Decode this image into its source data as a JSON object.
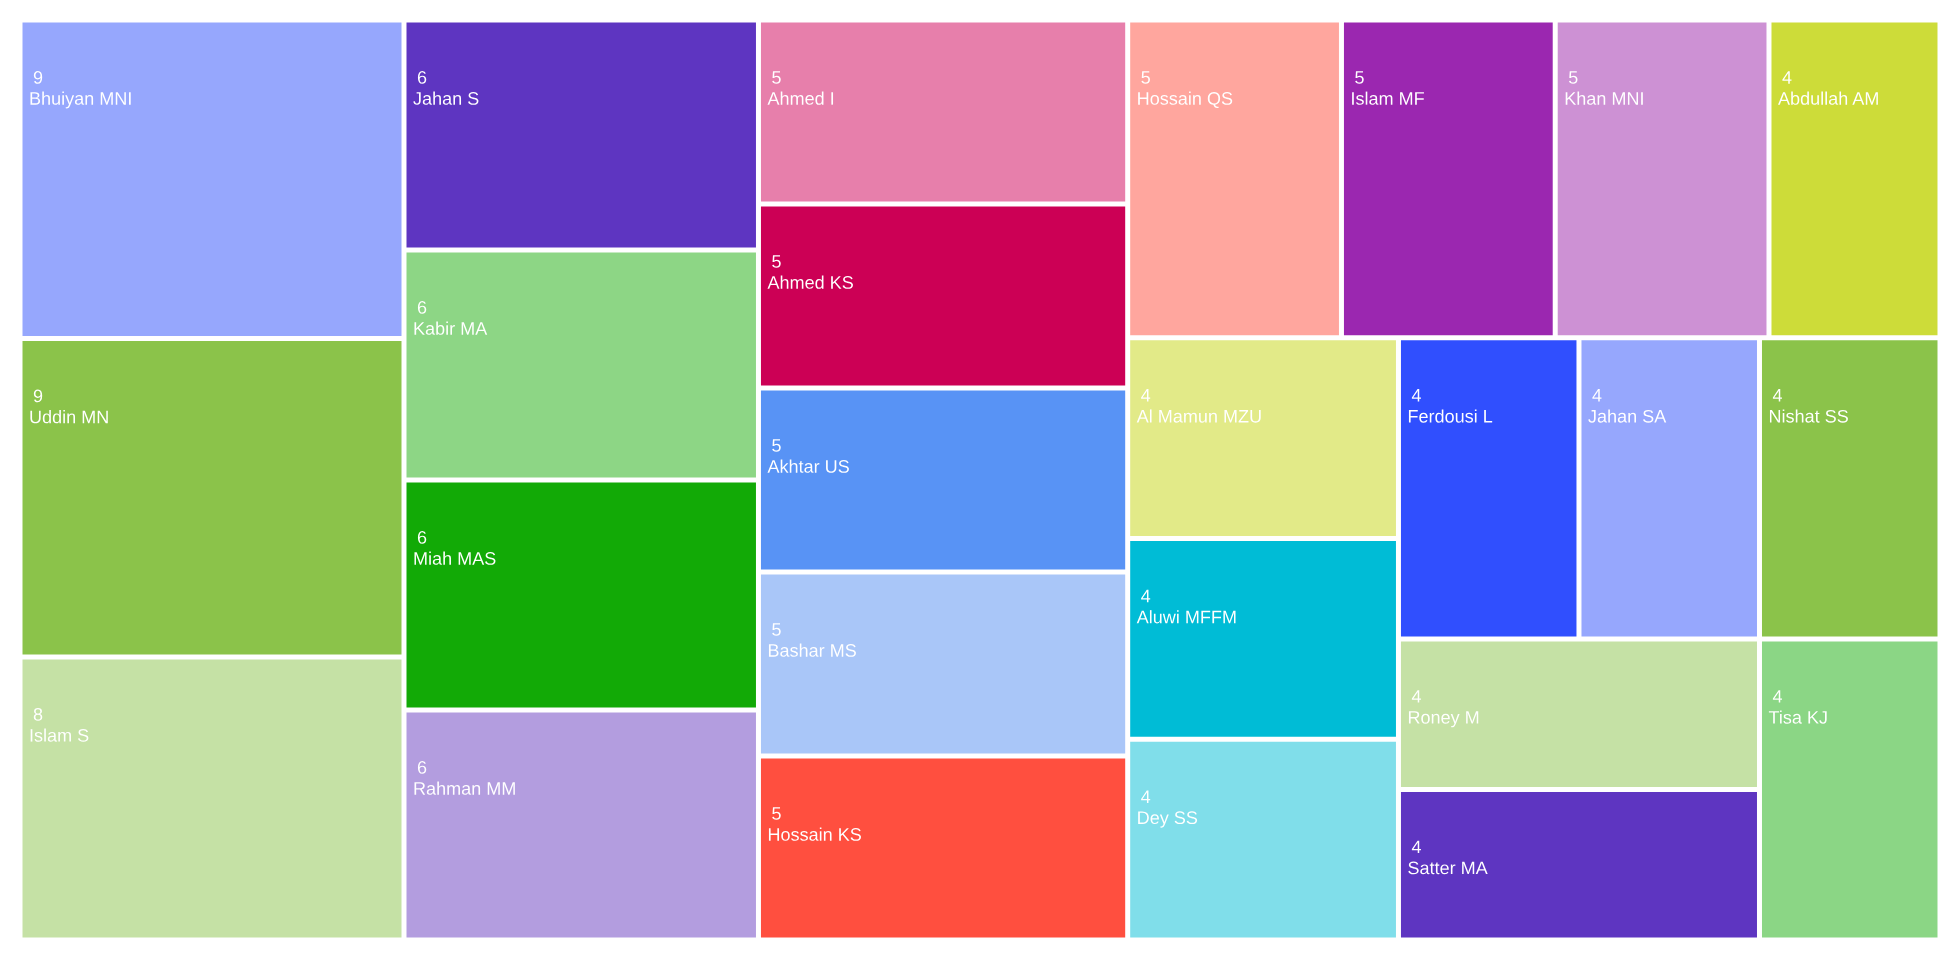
{
  "chart_data": {
    "type": "other",
    "categories": [
      "Bhuiyan MNI",
      "Uddin MN",
      "Islam S",
      "Jahan S",
      "Kabir MA",
      "Miah MAS",
      "Rahman MM",
      "Ahmed I",
      "Ahmed KS",
      "Akhtar US",
      "Bashar MS",
      "Hossain KS",
      "Hossain QS",
      "Islam MF",
      "Khan MNI",
      "Abdullah AM",
      "Al Mamun MZU",
      "Aluwi MFFM",
      "Dey SS",
      "Ferdousi L",
      "Jahan SA",
      "Nishat SS",
      "Roney M",
      "Satter MA",
      "Tisa KJ"
    ],
    "values": [
      9,
      9,
      8,
      6,
      6,
      6,
      6,
      5,
      5,
      5,
      5,
      5,
      5,
      5,
      5,
      4,
      4,
      4,
      4,
      4,
      4,
      4,
      4,
      4,
      4
    ],
    "colors": [
      "#96a7fd",
      "#8bc34a",
      "#c5e1a5",
      "#5e35c1",
      "#8dd685",
      "#12aa06",
      "#b39ddf",
      "#e77fab",
      "#cc0055",
      "#5893f5",
      "#a9c6f8",
      "#ff4f3f",
      "#ffa69e",
      "#9b27b0",
      "#cd91d4",
      "#cddc39",
      "#e2ea88",
      "#00bcd6",
      "#80deea",
      "#304ffe",
      "#96a7fd",
      "#8bc34a",
      "#c5e1a5",
      "#5e35c1",
      "#8bd685"
    ],
    "data_labels": true
  }
}
